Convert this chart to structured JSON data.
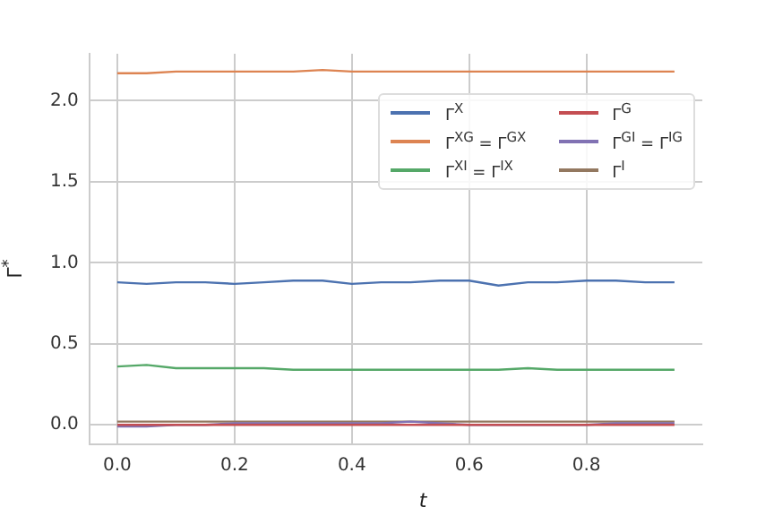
{
  "chart_data": {
    "type": "line",
    "xlabel": "t",
    "ylabel": "Γ$^{*}$",
    "x": [
      0,
      0.05,
      0.1,
      0.15,
      0.2,
      0.25,
      0.3,
      0.35,
      0.4,
      0.45,
      0.5,
      0.55,
      0.6,
      0.65,
      0.7,
      0.75,
      0.8,
      0.85,
      0.9,
      0.95
    ],
    "series": [
      {
        "name": "Γ$^{X}$",
        "color": "#4c72b0",
        "values": [
          0.88,
          0.87,
          0.88,
          0.88,
          0.87,
          0.88,
          0.89,
          0.89,
          0.87,
          0.88,
          0.88,
          0.89,
          0.89,
          0.86,
          0.88,
          0.88,
          0.89,
          0.89,
          0.88,
          0.88
        ]
      },
      {
        "name": "Γ$^{XG}$ = Γ$^{GX}$",
        "color": "#dd8452",
        "values": [
          2.17,
          2.17,
          2.18,
          2.18,
          2.18,
          2.18,
          2.18,
          2.19,
          2.18,
          2.18,
          2.18,
          2.18,
          2.18,
          2.18,
          2.18,
          2.18,
          2.18,
          2.18,
          2.18,
          2.18
        ]
      },
      {
        "name": "Γ$^{XI}$ = Γ$^{IX}$",
        "color": "#55a868",
        "values": [
          0.36,
          0.37,
          0.35,
          0.35,
          0.35,
          0.35,
          0.34,
          0.34,
          0.34,
          0.34,
          0.34,
          0.34,
          0.34,
          0.34,
          0.35,
          0.34,
          0.34,
          0.34,
          0.34,
          0.34
        ]
      },
      {
        "name": "Γ$^{G}$",
        "color": "#c44e52",
        "values": [
          0.0,
          0.0,
          0.0,
          0.0,
          0.0,
          0.0,
          0.0,
          0.0,
          0.0,
          0.0,
          0.0,
          0.0,
          0.0,
          0.0,
          0.0,
          0.0,
          0.0,
          0.0,
          0.0,
          0.0
        ]
      },
      {
        "name": "Γ$^{GI}$ = Γ$^{IG}$",
        "color": "#8172b3",
        "values": [
          -0.01,
          -0.01,
          0.0,
          0.0,
          0.01,
          0.01,
          0.01,
          0.01,
          0.01,
          0.01,
          0.02,
          0.01,
          0.0,
          0.0,
          0.0,
          0.0,
          0.0,
          0.01,
          0.01,
          0.01
        ]
      },
      {
        "name": "Γ$^{I}$",
        "color": "#937860",
        "values": [
          0.02,
          0.02,
          0.02,
          0.02,
          0.02,
          0.02,
          0.02,
          0.02,
          0.02,
          0.02,
          0.02,
          0.02,
          0.02,
          0.02,
          0.02,
          0.02,
          0.02,
          0.02,
          0.02,
          0.02
        ]
      }
    ],
    "xlim": [
      -0.0475,
      0.9975
    ],
    "xticks": [
      {
        "value": 0,
        "label": "0.0"
      },
      {
        "value": 0.2,
        "label": "0.2"
      },
      {
        "value": 0.4,
        "label": "0.4"
      },
      {
        "value": 0.6,
        "label": "0.6"
      },
      {
        "value": 0.8,
        "label": "0.8"
      }
    ],
    "ylim": [
      -0.12,
      2.29
    ],
    "yticks": [
      {
        "value": 0,
        "label": "0.0"
      },
      {
        "value": 0.5,
        "label": "0.5"
      },
      {
        "value": 1,
        "label": "1.0"
      },
      {
        "value": 1.5,
        "label": "1.5"
      },
      {
        "value": 2,
        "label": "2.0"
      }
    ],
    "grid": true,
    "legend": "top right",
    "marker": "none",
    "line_style": "solid"
  }
}
